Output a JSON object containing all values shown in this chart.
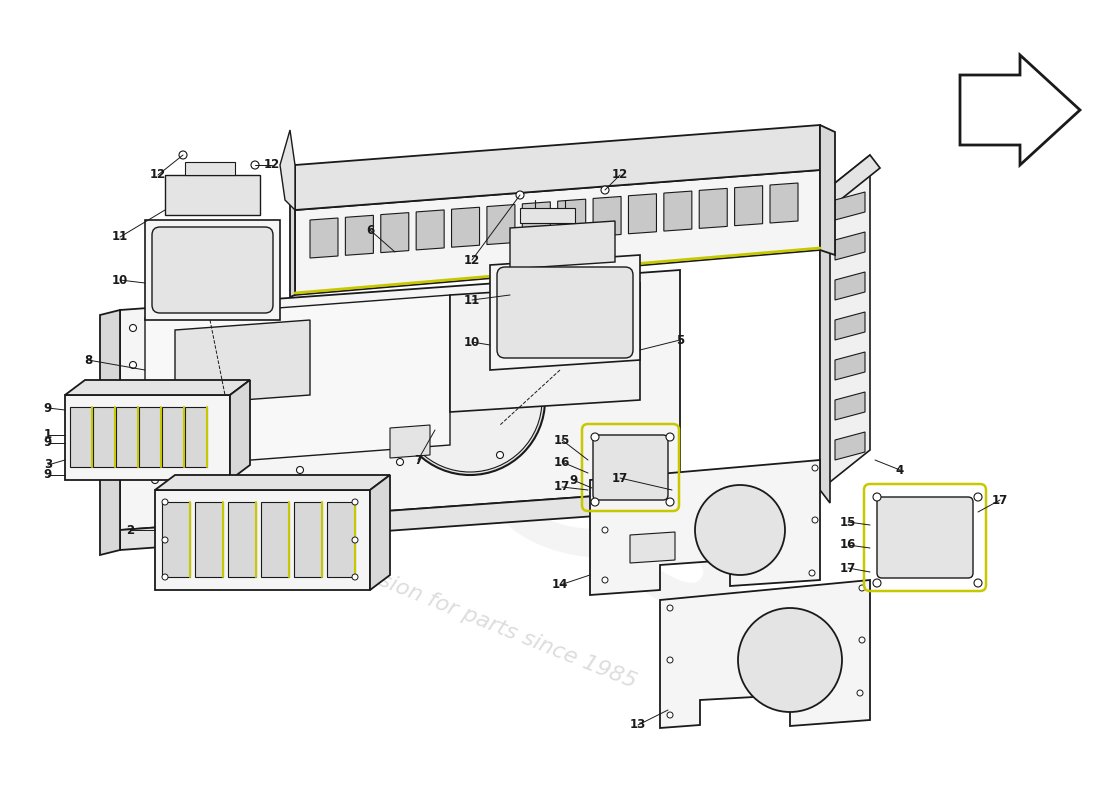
{
  "bg_color": "#ffffff",
  "line_color": "#1a1a1a",
  "face_color_light": "#f0f0f0",
  "face_color_mid": "#e4e4e4",
  "face_color_dark": "#d8d8d8",
  "face_color_darker": "#c8c8c8",
  "face_color_panel": "#f5f5f5",
  "yellow": "#c8c800",
  "watermark1": "ees",
  "watermark2": "a passion for parts since 1985",
  "label_fontsize": 8.5,
  "wm_color1": "#cccccc",
  "wm_color2": "#bbbbbb"
}
